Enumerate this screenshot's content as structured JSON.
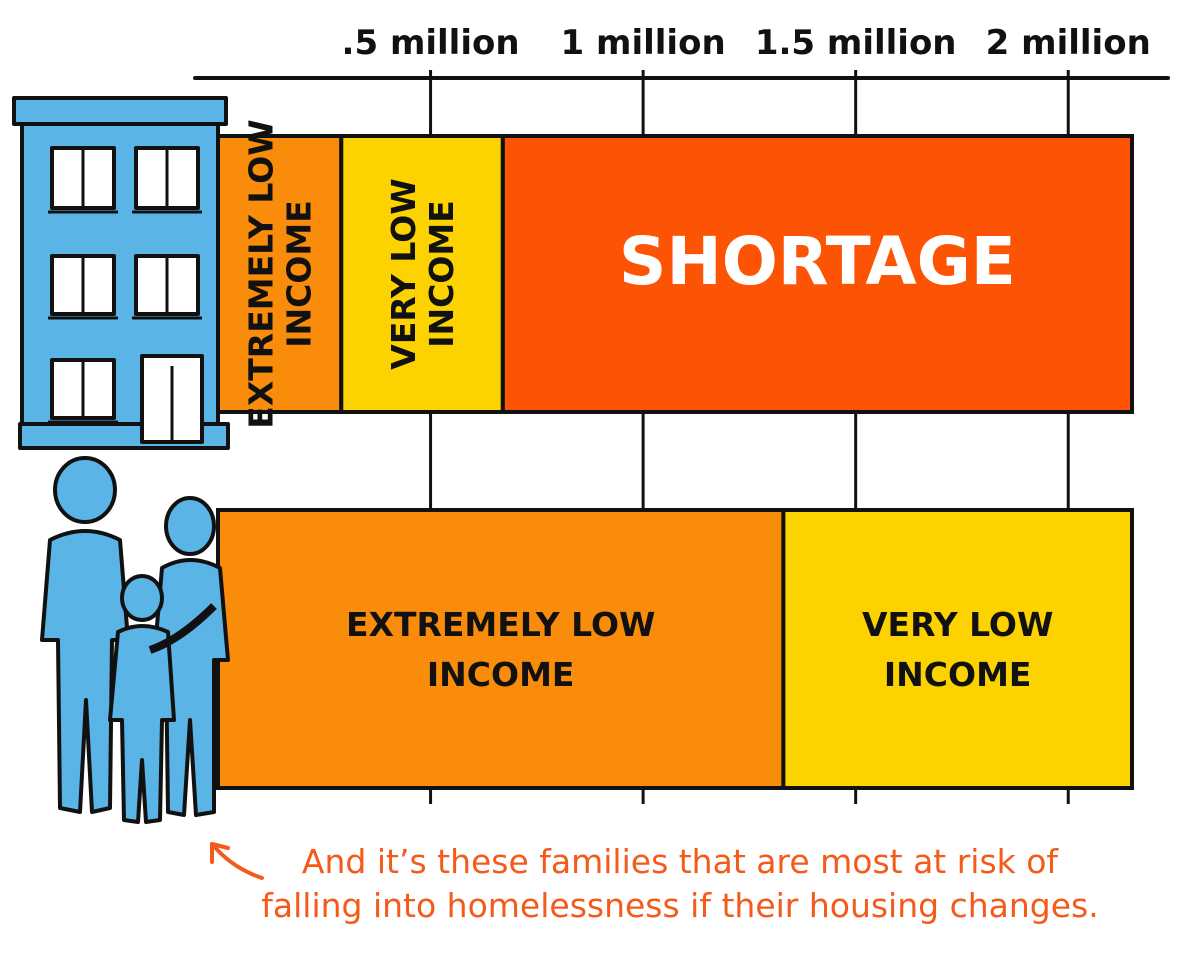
{
  "colors": {
    "extremely_low": "#fa8c0c",
    "very_low": "#fcd200",
    "shortage": "#fd5304",
    "figure_blue": "#5ab4e6",
    "caption": "#f45a1a",
    "outline": "#111111"
  },
  "icons": {
    "building": "apartment-building-icon",
    "family": "family-icon",
    "arrow": "curved-arrow-icon"
  },
  "chart_data": {
    "type": "bar",
    "orientation": "horizontal",
    "stacked": true,
    "xlim": [
      0,
      2.15
    ],
    "x_unit": "million",
    "tick_values": [
      0.5,
      1,
      1.5,
      2
    ],
    "tick_labels": [
      ".5 million",
      "1 million",
      "1.5 million",
      "2 million"
    ],
    "bars": [
      {
        "icon": "apartment-building-icon",
        "segments": [
          {
            "label_lines": [
              "EXTREMELY LOW",
              "INCOME"
            ],
            "start": 0,
            "end": 0.29,
            "color": "#fa8c0c",
            "label_style": "vertical"
          },
          {
            "label_lines": [
              "VERY LOW",
              "INCOME"
            ],
            "start": 0.29,
            "end": 0.67,
            "color": "#fcd200",
            "label_style": "vertical"
          },
          {
            "label_lines": [
              "SHORTAGE"
            ],
            "start": 0.67,
            "end": 2.15,
            "color": "#fd5304",
            "label_style": "big"
          }
        ]
      },
      {
        "icon": "family-icon",
        "segments": [
          {
            "label_lines": [
              "EXTREMELY LOW",
              "INCOME"
            ],
            "start": 0,
            "end": 1.33,
            "color": "#fa8c0c",
            "label_style": "horizontal"
          },
          {
            "label_lines": [
              "VERY LOW",
              "INCOME"
            ],
            "start": 1.33,
            "end": 2.15,
            "color": "#fcd200",
            "label_style": "horizontal"
          }
        ]
      }
    ]
  },
  "caption": {
    "line1": "And it’s these families that are most at risk of",
    "line2": "falling into homelessness if their housing changes."
  }
}
